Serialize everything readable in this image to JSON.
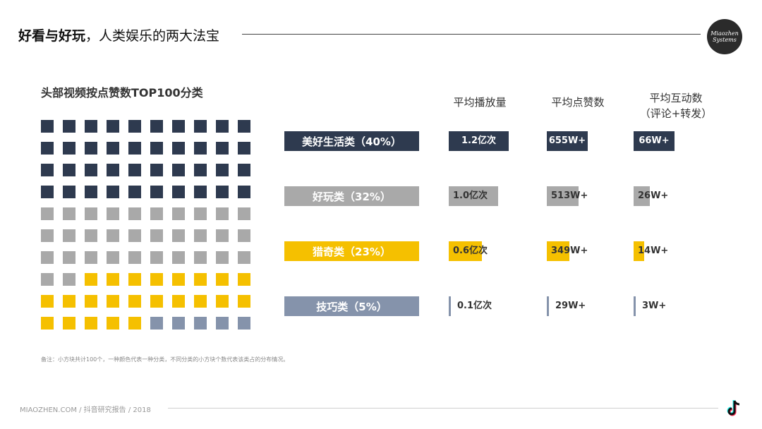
{
  "header": {
    "title_bold": "好看与好玩",
    "title_rest": "，人类娱乐的两大法宝",
    "logo_line1": "Miaozhen",
    "logo_line2": "Systems"
  },
  "colors": {
    "dark": "#2e3a4f",
    "gray": "#a9a9a9",
    "yellow": "#f5c000",
    "blue": "#8593ab"
  },
  "chart_data": {
    "type": "table",
    "title": "头部视频按点赞数TOP100分类",
    "waffle": {
      "rows": 10,
      "cols": 10,
      "order": [
        "美好生活类",
        "好玩类",
        "猎奇类",
        "技巧类"
      ],
      "counts": [
        40,
        32,
        23,
        5
      ]
    },
    "columns": [
      "平均播放量",
      "平均点赞数",
      "平均互动数",
      "（评论+转发）"
    ],
    "categories": [
      {
        "label": "美好生活类（40%）",
        "color": "dark",
        "values": [
          "1.2亿次",
          "655W+",
          "66W+"
        ],
        "fills": [
          1.0,
          1.0,
          1.0
        ]
      },
      {
        "label": "好玩类（32%）",
        "color": "gray",
        "values": [
          "1.0亿次",
          "513W+",
          "26W+"
        ],
        "fills": [
          0.82,
          0.78,
          0.39
        ]
      },
      {
        "label": "猎奇类（23%）",
        "color": "yellow",
        "values": [
          "0.6亿次",
          "349W+",
          "14W+"
        ],
        "fills": [
          0.55,
          0.55,
          0.25
        ]
      },
      {
        "label": "技巧类（5%）",
        "color": "blue",
        "values": [
          "0.1亿次",
          "29W+",
          "3W+"
        ],
        "fills": [
          0.04,
          0.04,
          0.03
        ]
      }
    ]
  },
  "note": "备注：小方块共计100个，一种颜色代表一种分类，不同分类的小方块个数代表该类占的分布情况。",
  "footer": {
    "text": "MIAOZHEN.COM / 抖音研究报告 / 2018"
  },
  "icons": {
    "tiktok": "tiktok-icon"
  }
}
